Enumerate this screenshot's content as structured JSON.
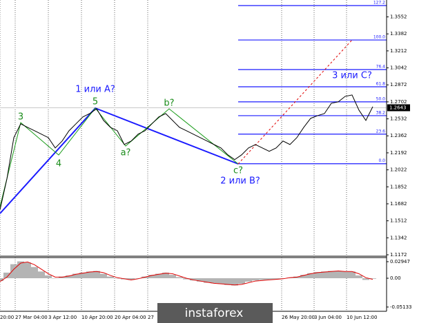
{
  "chart_data": [
    {
      "type": "line",
      "color": "#000000",
      "values": [
        1.1622,
        1.1931,
        1.2344,
        1.2482,
        1.2447,
        1.2413,
        1.2379,
        1.2344,
        1.2241,
        1.231,
        1.2413,
        1.2482,
        1.2551,
        1.2585,
        1.2633,
        1.2516,
        1.2447,
        1.2413,
        1.2275,
        1.231,
        1.2379,
        1.2413,
        1.2482,
        1.2551,
        1.2585,
        1.2516,
        1.2447,
        1.2413,
        1.2379,
        1.2344,
        1.231,
        1.2275,
        1.2241,
        1.2172,
        1.2124,
        1.2172,
        1.2241,
        1.2275,
        1.2241,
        1.2207,
        1.2241,
        1.231,
        1.2275,
        1.2344,
        1.2447,
        1.2537,
        1.2564,
        1.2585,
        1.2688,
        1.2702,
        1.2757,
        1.2771,
        1.2619,
        1.2516,
        1.2654
      ],
      "xlim": [
        0,
        56
      ],
      "xticks": [
        {
          "value": 0,
          "label": "20:00"
        },
        {
          "value": 2.2,
          "label": "27 Mar 04:00"
        },
        {
          "value": 7.0,
          "label": "3 Apr 12:00"
        },
        {
          "value": 11.8,
          "label": "10 Apr 20:00"
        },
        {
          "value": 16.6,
          "label": "20 Apr 04:00"
        },
        {
          "value": 21.4,
          "label": "27"
        },
        {
          "value": 40.8,
          "label": "26 May 20:00"
        },
        {
          "value": 45.5,
          "label": "3 Jun 04:00"
        },
        {
          "value": 50.2,
          "label": "10 Jun 12:00"
        }
      ],
      "ylim": [
        1.1158,
        1.3721
      ],
      "yticks": [
        1.3552,
        1.3382,
        1.3212,
        1.3042,
        1.2872,
        1.2702,
        1.2532,
        1.2362,
        1.2192,
        1.2022,
        1.1852,
        1.1682,
        1.1512,
        1.1342,
        1.1172
      ],
      "last_price": 1.2643,
      "levels": [
        {
          "value": 1.2083,
          "label": "0.0"
        },
        {
          "value": 1.2379,
          "label": "23.6"
        },
        {
          "value": 1.2564,
          "label": "38.2"
        },
        {
          "value": 1.2702,
          "label": "50.0"
        },
        {
          "value": 1.2853,
          "label": "61.8"
        },
        {
          "value": 1.3025,
          "label": "76.4"
        },
        {
          "value": 1.3321,
          "label": "100.0"
        },
        {
          "value": 1.3665,
          "label": "127.2"
        }
      ],
      "annotations": [
        "1 или A?",
        "2 или B?",
        "3 или C?",
        "3",
        "4",
        "5",
        "a?",
        "b?",
        "c?"
      ]
    },
    {
      "type": "bar",
      "xlim": [
        0,
        56
      ],
      "ylim": [
        -0.0589,
        0.0368
      ],
      "yticks": [
        0.02947,
        {
          "value": 0,
          "label": "0.00"
        },
        -0.05133
      ],
      "series": [
        {
          "color": "#b4b4b4",
          "values": [
            -0.005,
            0.01,
            0.025,
            0.03,
            0.028,
            0.02,
            0.012,
            0.005,
            0.0,
            0.003,
            0.005,
            0.008,
            0.01,
            0.012,
            0.013,
            0.008,
            0.003,
            0.0,
            -0.002,
            -0.003,
            0.0,
            0.003,
            0.006,
            0.008,
            0.01,
            0.006,
            0.002,
            -0.002,
            -0.004,
            -0.006,
            -0.008,
            -0.009,
            -0.01,
            -0.012,
            -0.013,
            -0.01,
            -0.006,
            -0.004,
            -0.003,
            -0.003,
            -0.002,
            0.0,
            0.001,
            0.003,
            0.006,
            0.009,
            0.011,
            0.012,
            0.013,
            0.013,
            0.012,
            0.012,
            0.005,
            -0.003,
            -0.001
          ]
        },
        {
          "color": "#e00000",
          "values": [
            -0.006,
            0.002,
            0.016,
            0.027,
            0.029,
            0.024,
            0.016,
            0.008,
            0.002,
            0.002,
            0.004,
            0.007,
            0.009,
            0.011,
            0.012,
            0.01,
            0.005,
            0.001,
            -0.001,
            -0.003,
            -0.001,
            0.002,
            0.005,
            0.007,
            0.009,
            0.008,
            0.004,
            0.0,
            -0.003,
            -0.005,
            -0.007,
            -0.009,
            -0.01,
            -0.011,
            -0.012,
            -0.011,
            -0.008,
            -0.005,
            -0.004,
            -0.003,
            -0.002,
            -0.001,
            0.001,
            0.002,
            0.005,
            0.008,
            0.01,
            0.011,
            0.012,
            0.013,
            0.012,
            0.012,
            0.008,
            0.001,
            -0.002
          ]
        }
      ]
    }
  ],
  "watermark": "instaforex"
}
